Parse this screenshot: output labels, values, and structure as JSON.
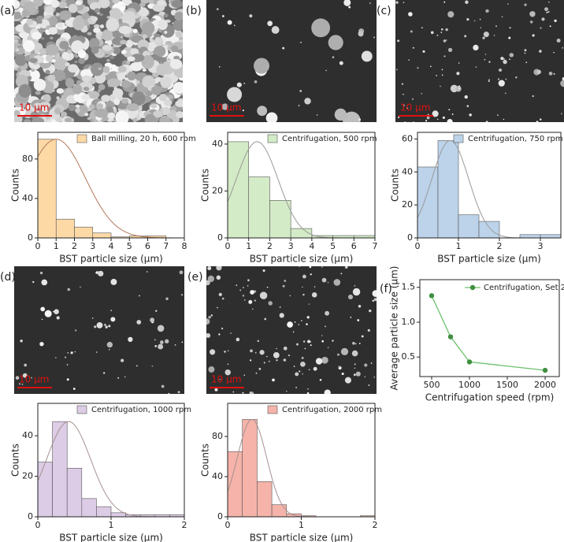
{
  "images": [
    {
      "label": "(a)",
      "scale_bar": "10 μm"
    },
    {
      "label": "(b)",
      "scale_bar": "10 μm"
    },
    {
      "label": "(c)",
      "scale_bar": "10 μm"
    },
    {
      "label": "(d)",
      "scale_bar": "10 μm"
    },
    {
      "label": "(e)",
      "scale_bar": "10 μm"
    }
  ],
  "chart_data": [
    {
      "type": "histogram",
      "legend": "Ball milling, 20 h, 600 rpm",
      "color": "#fdd9a6",
      "fit_color": "#b3785a",
      "bins": [
        0,
        1,
        2,
        3,
        4,
        5,
        6,
        7,
        8
      ],
      "values": [
        100,
        19,
        11,
        5,
        1,
        2,
        2,
        0
      ],
      "fit": {
        "center": 1,
        "sigma": 1.6,
        "amplitude": 100
      },
      "xlim": [
        0,
        8
      ],
      "xticks": [
        0,
        1,
        2,
        3,
        4,
        5,
        6,
        7,
        8
      ],
      "ylim": [
        0,
        107
      ],
      "yticks": [
        0,
        40,
        80
      ],
      "xlabel": "BST particle size (μm)",
      "ylabel": "Counts"
    },
    {
      "type": "histogram",
      "legend": "Centrifugation, 500 rpm",
      "color": "#d3ebc6",
      "fit_color": "#9a9a9a",
      "bins": [
        0,
        1,
        2,
        3,
        4,
        5,
        6,
        7
      ],
      "values": [
        41,
        26,
        16,
        4,
        1,
        1,
        1
      ],
      "fit": {
        "center": 1.4,
        "sigma": 1.0,
        "amplitude": 41
      },
      "xlim": [
        0,
        7
      ],
      "xticks": [
        0,
        1,
        2,
        3,
        4,
        5,
        6,
        7
      ],
      "ylim": [
        0,
        45
      ],
      "yticks": [
        0,
        20,
        40
      ],
      "xlabel": "BST particle size (μm)",
      "ylabel": "Counts"
    },
    {
      "type": "histogram",
      "legend": "Centrifugation, 750 rpm",
      "color": "#bcd3ea",
      "fit_color": "#9a9a9a",
      "bins": [
        0,
        0.5,
        1,
        1.5,
        2,
        2.5,
        3,
        3.5
      ],
      "values": [
        43,
        59,
        14,
        10,
        0,
        2,
        2
      ],
      "fit": {
        "center": 0.8,
        "sigma": 0.45,
        "amplitude": 59
      },
      "xlim": [
        0,
        3.5
      ],
      "xticks": [
        0,
        1,
        2,
        3
      ],
      "ylim": [
        0,
        64
      ],
      "yticks": [
        0,
        20,
        40,
        60
      ],
      "xlabel": "BST particle size (μm)",
      "ylabel": "Counts"
    },
    {
      "type": "histogram",
      "legend": "Centrifugation, 1000 rpm",
      "color": "#dccce6",
      "fit_color": "#a89090",
      "bins": [
        0,
        0.2,
        0.4,
        0.6,
        0.8,
        1,
        1.2,
        1.4,
        1.6,
        1.8,
        2
      ],
      "values": [
        27,
        47,
        24,
        9,
        5,
        2,
        1,
        1,
        1,
        1
      ],
      "fit": {
        "center": 0.42,
        "sigma": 0.3,
        "amplitude": 47
      },
      "xlim": [
        0,
        2
      ],
      "xticks": [
        0,
        1,
        2
      ],
      "ylim": [
        0,
        56
      ],
      "yticks": [
        0,
        20,
        40
      ],
      "xlabel": "BST particle size (μm)",
      "ylabel": "Counts"
    },
    {
      "type": "histogram",
      "legend": "Centrifugation, 2000 rpm",
      "color": "#f5b3aa",
      "fit_color": "#a89090",
      "bins": [
        0,
        0.2,
        0.4,
        0.6,
        0.8,
        1,
        1.2,
        1.4,
        1.6,
        1.8,
        2
      ],
      "values": [
        65,
        97,
        35,
        12,
        3,
        1,
        0,
        0,
        0,
        1
      ],
      "fit": {
        "center": 0.33,
        "sigma": 0.2,
        "amplitude": 97
      },
      "xlim": [
        0,
        2
      ],
      "xticks": [
        0,
        1,
        2
      ],
      "ylim": [
        0,
        113
      ],
      "yticks": [
        0,
        40,
        80
      ],
      "xlabel": "BST particle size (μm)",
      "ylabel": "Counts"
    },
    {
      "type": "line",
      "panel": "(f)",
      "x": [
        500,
        750,
        1000,
        2000
      ],
      "series": [
        {
          "name": "Centrifugation, Set 2",
          "color": "#6cc06c",
          "marker_color": "#3f8f3f",
          "values": [
            1.38,
            0.79,
            0.43,
            0.31
          ]
        }
      ],
      "xlim": [
        344,
        2187
      ],
      "xticks": [
        500,
        1000,
        1500,
        2000
      ],
      "ylim": [
        0.22,
        1.61
      ],
      "yticks": [
        0.5,
        {
          "value": 1,
          "label": "1.0"
        },
        1.5
      ],
      "xlabel": "Centrifugation speed (rpm)",
      "ylabel": "Average particle size (μm)"
    }
  ]
}
